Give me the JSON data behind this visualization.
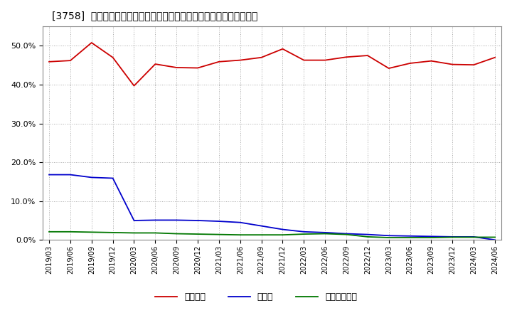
{
  "title": "[3758]  自己資本、のれん、繰延税金資産の総資産に対する比率の推移",
  "x_labels": [
    "2019/03",
    "2019/06",
    "2019/09",
    "2019/12",
    "2020/03",
    "2020/06",
    "2020/09",
    "2020/12",
    "2021/03",
    "2021/06",
    "2021/09",
    "2021/12",
    "2022/03",
    "2022/06",
    "2022/09",
    "2022/12",
    "2023/03",
    "2023/06",
    "2023/09",
    "2023/12",
    "2024/03",
    "2024/06"
  ],
  "equity": [
    0.459,
    0.462,
    0.508,
    0.47,
    0.397,
    0.453,
    0.444,
    0.443,
    0.459,
    0.463,
    0.47,
    0.492,
    0.463,
    0.463,
    0.471,
    0.475,
    0.442,
    0.455,
    0.461,
    0.452,
    0.451,
    0.47
  ],
  "goodwill": [
    0.168,
    0.168,
    0.161,
    0.159,
    0.05,
    0.051,
    0.051,
    0.05,
    0.048,
    0.045,
    0.036,
    0.027,
    0.021,
    0.019,
    0.016,
    0.014,
    0.011,
    0.01,
    0.009,
    0.008,
    0.008,
    0.0
  ],
  "deferred_tax": [
    0.021,
    0.021,
    0.02,
    0.019,
    0.018,
    0.018,
    0.016,
    0.015,
    0.014,
    0.013,
    0.013,
    0.013,
    0.015,
    0.016,
    0.014,
    0.008,
    0.006,
    0.006,
    0.006,
    0.007,
    0.007,
    0.007
  ],
  "equity_color": "#cc0000",
  "goodwill_color": "#0000cc",
  "deferred_tax_color": "#007700",
  "background_color": "#ffffff",
  "plot_bg_color": "#ffffff",
  "grid_color": "#aaaaaa",
  "ylim": [
    0.0,
    0.55
  ],
  "yticks": [
    0.0,
    0.1,
    0.2,
    0.3,
    0.4,
    0.5
  ],
  "legend_equity": "自己資本",
  "legend_goodwill": "のれん",
  "legend_deferred": "繰延税金資産"
}
